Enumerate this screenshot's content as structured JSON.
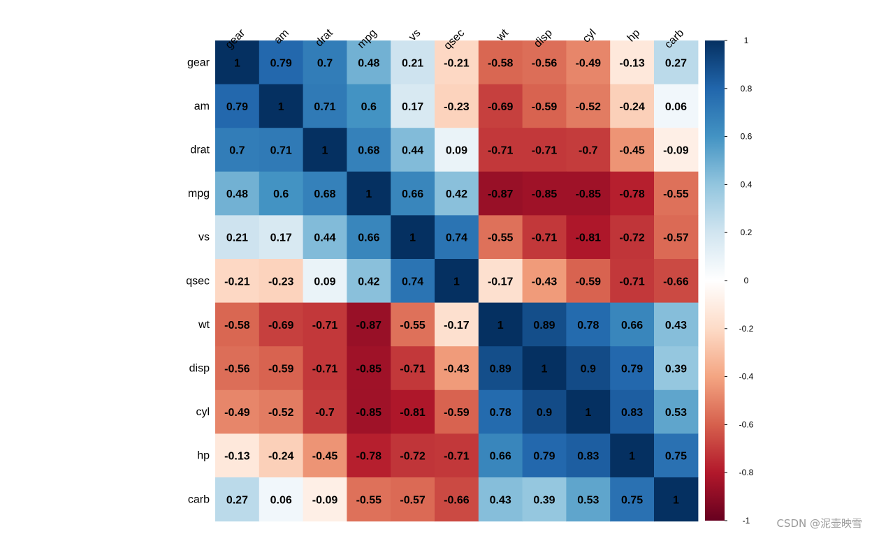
{
  "watermark": "CSDN @泥壶映雪",
  "chart_data": {
    "type": "heatmap",
    "x_labels": [
      "gear",
      "am",
      "drat",
      "mpg",
      "vs",
      "qsec",
      "wt",
      "disp",
      "cyl",
      "hp",
      "carb"
    ],
    "y_labels": [
      "gear",
      "am",
      "drat",
      "mpg",
      "vs",
      "qsec",
      "wt",
      "disp",
      "cyl",
      "hp",
      "carb"
    ],
    "values": [
      [
        "1",
        "0.79",
        "0.7",
        "0.48",
        "0.21",
        "-0.21",
        "-0.58",
        "-0.56",
        "-0.49",
        "-0.13",
        "0.27"
      ],
      [
        "0.79",
        "1",
        "0.71",
        "0.6",
        "0.17",
        "-0.23",
        "-0.69",
        "-0.59",
        "-0.52",
        "-0.24",
        "0.06"
      ],
      [
        "0.7",
        "0.71",
        "1",
        "0.68",
        "0.44",
        "0.09",
        "-0.71",
        "-0.71",
        "-0.7",
        "-0.45",
        "-0.09"
      ],
      [
        "0.48",
        "0.6",
        "0.68",
        "1",
        "0.66",
        "0.42",
        "-0.87",
        "-0.85",
        "-0.85",
        "-0.78",
        "-0.55"
      ],
      [
        "0.21",
        "0.17",
        "0.44",
        "0.66",
        "1",
        "0.74",
        "-0.55",
        "-0.71",
        "-0.81",
        "-0.72",
        "-0.57"
      ],
      [
        "-0.21",
        "-0.23",
        "0.09",
        "0.42",
        "0.74",
        "1",
        "-0.17",
        "-0.43",
        "-0.59",
        "-0.71",
        "-0.66"
      ],
      [
        "-0.58",
        "-0.69",
        "-0.71",
        "-0.87",
        "-0.55",
        "-0.17",
        "1",
        "0.89",
        "0.78",
        "0.66",
        "0.43"
      ],
      [
        "-0.56",
        "-0.59",
        "-0.71",
        "-0.85",
        "-0.71",
        "-0.43",
        "0.89",
        "1",
        "0.9",
        "0.79",
        "0.39"
      ],
      [
        "-0.49",
        "-0.52",
        "-0.7",
        "-0.85",
        "-0.81",
        "-0.59",
        "0.78",
        "0.9",
        "1",
        "0.83",
        "0.53"
      ],
      [
        "-0.13",
        "-0.24",
        "-0.45",
        "-0.78",
        "-0.72",
        "-0.71",
        "0.66",
        "0.79",
        "0.83",
        "1",
        "0.75"
      ],
      [
        "0.27",
        "0.06",
        "-0.09",
        "-0.55",
        "-0.57",
        "-0.66",
        "0.43",
        "0.39",
        "0.53",
        "0.75",
        "1"
      ]
    ],
    "colorbar": {
      "range": [
        -1,
        1
      ],
      "ticks": [
        "1",
        "0.8",
        "0.6",
        "0.4",
        "0.2",
        "0",
        "-0.2",
        "-0.4",
        "-0.6",
        "-0.8",
        "-1"
      ]
    },
    "colorscale": [
      [
        -1.0,
        "#67001f"
      ],
      [
        -0.8,
        "#b2182b"
      ],
      [
        -0.6,
        "#d6604d"
      ],
      [
        -0.4,
        "#f4a582"
      ],
      [
        -0.2,
        "#fddbc7"
      ],
      [
        0.0,
        "#ffffff"
      ],
      [
        0.2,
        "#d1e5f0"
      ],
      [
        0.4,
        "#92c5de"
      ],
      [
        0.6,
        "#4393c3"
      ],
      [
        0.8,
        "#2166ac"
      ],
      [
        1.0,
        "#053061"
      ]
    ]
  }
}
